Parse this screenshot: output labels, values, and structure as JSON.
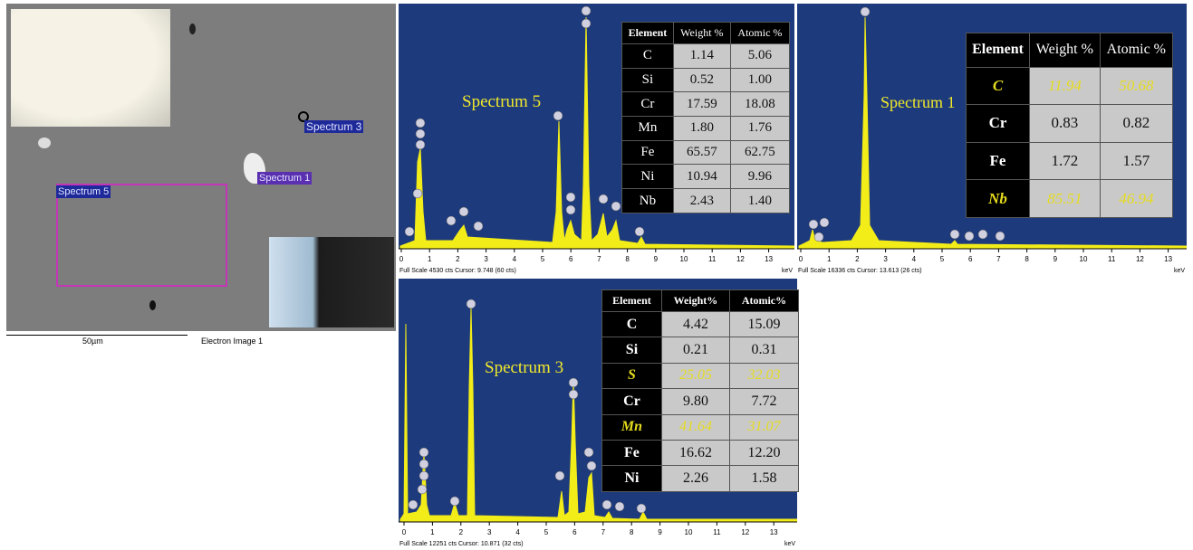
{
  "sem": {
    "labels": [
      "Spectrum 3",
      "Spectrum 1",
      "Spectrum 5"
    ],
    "scale_bar": "50µm",
    "caption": "Electron Image 1"
  },
  "spectra": [
    {
      "title": "Spectrum 5",
      "columns": [
        "Element",
        "Weight %",
        "Atomic %"
      ],
      "rows": [
        [
          "C",
          "1.14",
          "5.06"
        ],
        [
          "Si",
          "0.52",
          "1.00"
        ],
        [
          "Cr",
          "17.59",
          "18.08"
        ],
        [
          "Mn",
          "1.80",
          "1.76"
        ],
        [
          "Fe",
          "65.57",
          "62.75"
        ],
        [
          "Ni",
          "10.94",
          "9.96"
        ],
        [
          "Nb",
          "2.43",
          "1.40"
        ]
      ],
      "highlighted_rows": [],
      "axis_ticks": [
        0,
        1,
        2,
        3,
        4,
        5,
        6,
        7,
        8,
        9,
        10,
        11,
        12,
        13
      ],
      "axis_unit": "keV",
      "footer": "Full Scale 4530 cts Cursor: 9.748 (60 cts)"
    },
    {
      "title": "Spectrum 1",
      "columns": [
        "Element",
        "Weight %",
        "Atomic %"
      ],
      "rows": [
        [
          "C",
          "11.94",
          "50.68"
        ],
        [
          "Cr",
          "0.83",
          "0.82"
        ],
        [
          "Fe",
          "1.72",
          "1.57"
        ],
        [
          "Nb",
          "85.51",
          "46.94"
        ]
      ],
      "highlighted_rows": [
        0,
        3
      ],
      "axis_ticks": [
        0,
        1,
        2,
        3,
        4,
        5,
        6,
        7,
        8,
        9,
        10,
        11,
        12,
        13
      ],
      "axis_unit": "keV",
      "footer": "Full Scale 16336 cts Cursor: 13.613 (26 cts)"
    },
    {
      "title": "Spectrum 3",
      "columns": [
        "Element",
        "Weight%",
        "Atomic%"
      ],
      "rows": [
        [
          "C",
          "4.42",
          "15.09"
        ],
        [
          "Si",
          "0.21",
          "0.31"
        ],
        [
          "S",
          "25.05",
          "32.03"
        ],
        [
          "Cr",
          "9.80",
          "7.72"
        ],
        [
          "Mn",
          "41.64",
          "31.07"
        ],
        [
          "Fe",
          "16.62",
          "12.20"
        ],
        [
          "Ni",
          "2.26",
          "1.58"
        ]
      ],
      "highlighted_rows": [
        2,
        4
      ],
      "axis_ticks": [
        0,
        1,
        2,
        3,
        4,
        5,
        6,
        7,
        8,
        9,
        10,
        11,
        12,
        13
      ],
      "axis_unit": "keV",
      "footer": "Full Scale 12251 cts Cursor: 10.871 (32 cts)"
    }
  ]
}
